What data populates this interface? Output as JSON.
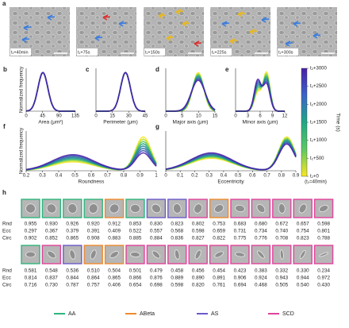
{
  "panel_labels": [
    "a",
    "b",
    "c",
    "d",
    "e",
    "f",
    "g",
    "h"
  ],
  "timelapse": {
    "labels": [
      "t₁+40min",
      "t₁+75s",
      "t₁+150s",
      "t₁+225s",
      "t₁+300s"
    ]
  },
  "distributions": {
    "y_label": "Normalized frequency",
    "plots": [
      {
        "x_label": "Area (μm²)",
        "xlim": [
          0,
          135
        ],
        "xticks": [
          0,
          45,
          90,
          135
        ]
      },
      {
        "x_label": "Perimeter (μm)",
        "xlim": [
          0,
          45
        ],
        "xticks": [
          0,
          15,
          30,
          45
        ]
      },
      {
        "x_label": "Major axis (μm)",
        "xlim": [
          0,
          15
        ],
        "xticks": [
          0,
          5,
          10,
          15
        ]
      },
      {
        "x_label": "Minor axis (μm)",
        "xlim": [
          0,
          12
        ],
        "xticks": [
          0,
          3,
          6,
          9,
          12
        ]
      },
      {
        "x_label": "Roundness",
        "xlim": [
          0.2,
          1
        ],
        "xticks": [
          0.2,
          0.3,
          0.4,
          0.5,
          0.6,
          0.7,
          0.8,
          0.9,
          1
        ]
      },
      {
        "x_label": "Eccentricity",
        "xlim": [
          0,
          0.9
        ],
        "xticks": [
          0,
          0.1,
          0.2,
          0.3,
          0.4,
          0.5,
          0.6,
          0.7,
          0.8,
          0.9
        ]
      }
    ]
  },
  "colorbar": {
    "title": "Time (s)",
    "note": "(t₂=40min)",
    "lim": [
      0,
      3000
    ],
    "ticks": [
      {
        "value": 3000,
        "label": "t₂+3000"
      },
      {
        "value": 2500,
        "label": "t₂+2500"
      },
      {
        "value": 2000,
        "label": "t₂+2000"
      },
      {
        "value": 1500,
        "label": "t₂+1500"
      },
      {
        "value": 1000,
        "label": "t₂+1000"
      },
      {
        "value": 500,
        "label": "t₂+500"
      },
      {
        "value": 0,
        "label": "t₂+0"
      }
    ]
  },
  "morphology": {
    "row_labels": [
      "Rnd",
      "Ecc",
      "Circ"
    ],
    "rows": [
      {
        "rnd": [
          "0.955",
          "0.930",
          "0.926",
          "0.920",
          "0.912",
          "0.853",
          "0.830",
          "0.823",
          "0.802",
          "0.753",
          "0.683",
          "0.680",
          "0.672",
          "0.657",
          "0.598"
        ],
        "ecc": [
          "0.297",
          "0.367",
          "0.379",
          "0.391",
          "0.409",
          "0.522",
          "0.557",
          "0.568",
          "0.598",
          "0.659",
          "0.731",
          "0.734",
          "0.740",
          "0.754",
          "0.801"
        ],
        "circ": [
          "0.902",
          "0.852",
          "0.865",
          "0.908",
          "0.883",
          "0.885",
          "0.884",
          "0.836",
          "0.827",
          "0.822",
          "0.775",
          "0.776",
          "0.708",
          "0.823",
          "0.788"
        ],
        "groups": [
          0,
          0,
          0,
          0,
          1,
          0,
          2,
          2,
          3,
          1,
          3,
          3,
          3,
          3,
          3
        ]
      },
      {
        "rnd": [
          "0.581",
          "0.548",
          "0.536",
          "0.510",
          "0.504",
          "0.501",
          "0.479",
          "0.458",
          "0.456",
          "0.454",
          "0.423",
          "0.383",
          "0.332",
          "0.330",
          "0.234"
        ],
        "ecc": [
          "0.814",
          "0.837",
          "0.844",
          "0.864",
          "0.865",
          "0.866",
          "0.876",
          "0.889",
          "0.890",
          "0.891",
          "0.906",
          "0.924",
          "0.943",
          "0.944",
          "0.972"
        ],
        "circ": [
          "0.716",
          "0.730",
          "0.787",
          "0.757",
          "0.406",
          "0.654",
          "0.698",
          "0.598",
          "0.820",
          "0.761",
          "0.694",
          "0.468",
          "0.505",
          "0.540",
          "0.430"
        ],
        "groups": [
          0,
          3,
          2,
          1,
          1,
          3,
          3,
          3,
          3,
          3,
          3,
          3,
          3,
          3,
          3
        ]
      }
    ]
  },
  "legend": [
    {
      "name": "AA",
      "color": "#2fb57c"
    },
    {
      "name": "ABeta",
      "color": "#ef8a2c"
    },
    {
      "name": "AS",
      "color": "#6b5bc9"
    },
    {
      "name": "SCD",
      "color": "#e0439b"
    }
  ]
}
